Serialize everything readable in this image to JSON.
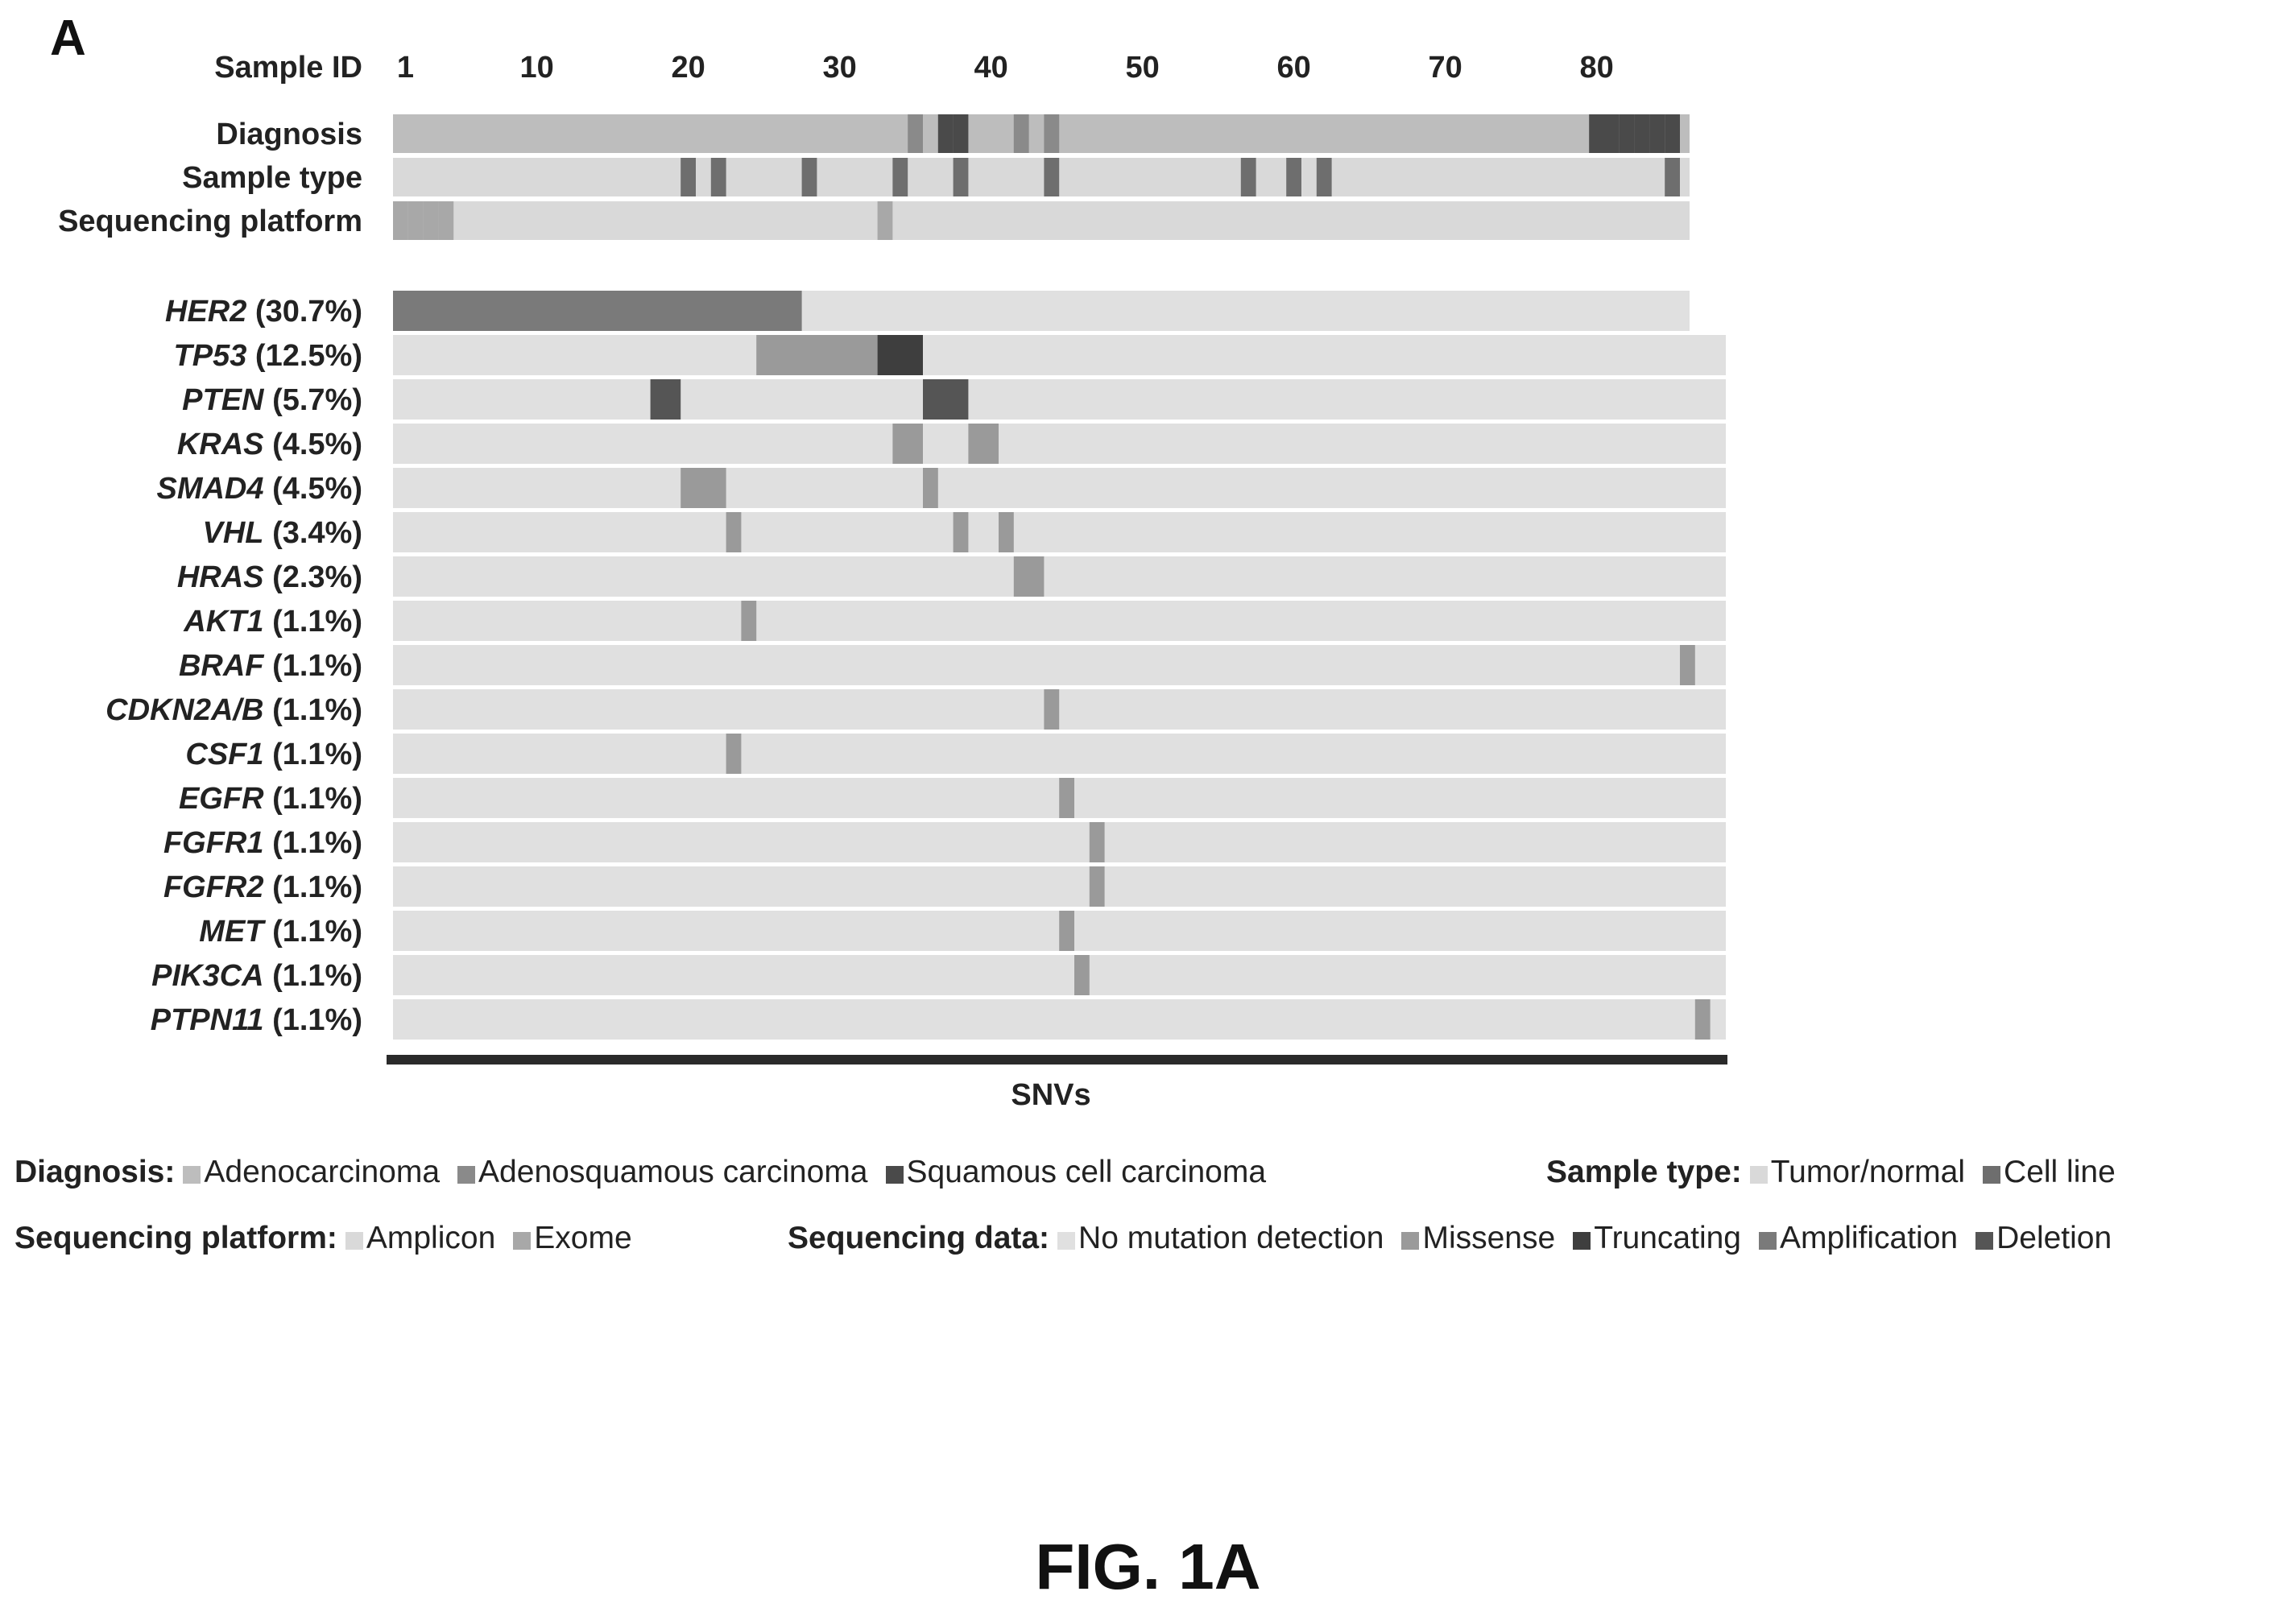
{
  "panel_label": "A",
  "figure_caption": "FIG. 1A",
  "colors": {
    "neutral": "#d9d9d9",
    "light": "#bdbdbd",
    "medium": "#9a9a9a",
    "dark": "#6e6e6e",
    "darkest": "#4a4a4a",
    "text": "#111111"
  },
  "chart_data": {
    "type": "heatmap",
    "x_label": "Sample ID",
    "x_ticks": [
      "1",
      "10",
      "20",
      "30",
      "40",
      "50",
      "60",
      "70",
      "80"
    ],
    "x_tick_values": [
      1,
      10,
      20,
      30,
      40,
      50,
      60,
      70,
      80
    ],
    "n_samples": 85,
    "bottom_label": "SNVs",
    "annotation_rows": [
      {
        "label": "Diagnosis",
        "cells": [
          {
            "sample": 35,
            "category": "Adenosquamous carcinoma"
          },
          {
            "sample": 37,
            "category": "Squamous cell carcinoma"
          },
          {
            "sample": 38,
            "category": "Squamous cell carcinoma"
          },
          {
            "sample": 42,
            "category": "Adenosquamous carcinoma"
          },
          {
            "sample": 44,
            "category": "Adenosquamous carcinoma"
          },
          {
            "sample": 80,
            "category": "Squamous cell carcinoma"
          },
          {
            "sample": 81,
            "category": "Squamous cell carcinoma"
          },
          {
            "sample": 82,
            "category": "Squamous cell carcinoma"
          },
          {
            "sample": 83,
            "category": "Squamous cell carcinoma"
          },
          {
            "sample": 84,
            "category": "Squamous cell carcinoma"
          },
          {
            "sample": 85,
            "category": "Squamous cell carcinoma"
          }
        ],
        "default": "Adenocarcinoma"
      },
      {
        "label": "Sample type",
        "cells": [
          {
            "sample": 20,
            "category": "Cell line"
          },
          {
            "sample": 22,
            "category": "Cell line"
          },
          {
            "sample": 28,
            "category": "Cell line"
          },
          {
            "sample": 34,
            "category": "Cell line"
          },
          {
            "sample": 38,
            "category": "Cell line"
          },
          {
            "sample": 44,
            "category": "Cell line"
          },
          {
            "sample": 57,
            "category": "Cell line"
          },
          {
            "sample": 60,
            "category": "Cell line"
          },
          {
            "sample": 62,
            "category": "Cell line"
          },
          {
            "sample": 85,
            "category": "Cell line"
          }
        ],
        "default": "Tumor/normal"
      },
      {
        "label": "Sequencing platform",
        "cells": [
          {
            "sample": 1,
            "category": "Exome"
          },
          {
            "sample": 2,
            "category": "Exome"
          },
          {
            "sample": 3,
            "category": "Exome"
          },
          {
            "sample": 4,
            "category": "Exome"
          },
          {
            "sample": 33,
            "category": "Exome"
          }
        ],
        "default": "Amplicon"
      }
    ],
    "genes": [
      {
        "gene": "HER2",
        "freq": "(30.7%)",
        "cells": [
          {
            "start": 1,
            "end": 27,
            "category": "Amplification"
          }
        ]
      },
      {
        "gene": "TP53",
        "freq": "(12.5%)",
        "cells": [
          {
            "start": 25,
            "end": 32,
            "category": "Missense"
          },
          {
            "start": 33,
            "end": 35,
            "category": "Truncating"
          }
        ]
      },
      {
        "gene": "PTEN",
        "freq": "(5.7%)",
        "cells": [
          {
            "start": 18,
            "end": 19,
            "category": "Deletion"
          },
          {
            "start": 36,
            "end": 38,
            "category": "Deletion"
          }
        ]
      },
      {
        "gene": "KRAS",
        "freq": "(4.5%)",
        "cells": [
          {
            "start": 34,
            "end": 35,
            "category": "Missense"
          },
          {
            "start": 39,
            "end": 40,
            "category": "Missense"
          }
        ]
      },
      {
        "gene": "SMAD4",
        "freq": "(4.5%)",
        "cells": [
          {
            "start": 20,
            "end": 22,
            "category": "Missense"
          },
          {
            "start": 36,
            "end": 36,
            "category": "Missense"
          }
        ]
      },
      {
        "gene": "VHL",
        "freq": "(3.4%)",
        "cells": [
          {
            "start": 23,
            "end": 23,
            "category": "Missense"
          },
          {
            "start": 38,
            "end": 38,
            "category": "Missense"
          },
          {
            "start": 41,
            "end": 41,
            "category": "Missense"
          }
        ]
      },
      {
        "gene": "HRAS",
        "freq": "(2.3%)",
        "cells": [
          {
            "start": 42,
            "end": 43,
            "category": "Missense"
          }
        ]
      },
      {
        "gene": "AKT1",
        "freq": "(1.1%)",
        "cells": [
          {
            "start": 24,
            "end": 24,
            "category": "Missense"
          }
        ]
      },
      {
        "gene": "BRAF",
        "freq": "(1.1%)",
        "cells": [
          {
            "start": 86,
            "end": 86,
            "category": "Missense"
          }
        ]
      },
      {
        "gene": "CDKN2A/B",
        "freq": "(1.1%)",
        "cells": [
          {
            "start": 44,
            "end": 44,
            "category": "Missense"
          }
        ]
      },
      {
        "gene": "CSF1",
        "freq": "(1.1%)",
        "cells": [
          {
            "start": 23,
            "end": 23,
            "category": "Missense"
          }
        ]
      },
      {
        "gene": "EGFR",
        "freq": "(1.1%)",
        "cells": [
          {
            "start": 45,
            "end": 45,
            "category": "Missense"
          }
        ]
      },
      {
        "gene": "FGFR1",
        "freq": "(1.1%)",
        "cells": [
          {
            "start": 47,
            "end": 47,
            "category": "Missense"
          }
        ]
      },
      {
        "gene": "FGFR2",
        "freq": "(1.1%)",
        "cells": [
          {
            "start": 47,
            "end": 47,
            "category": "Missense"
          }
        ]
      },
      {
        "gene": "MET",
        "freq": "(1.1%)",
        "cells": [
          {
            "start": 45,
            "end": 45,
            "category": "Missense"
          }
        ]
      },
      {
        "gene": "PIK3CA",
        "freq": "(1.1%)",
        "cells": [
          {
            "start": 46,
            "end": 46,
            "category": "Missense"
          }
        ]
      },
      {
        "gene": "PTPN11",
        "freq": "(1.1%)",
        "cells": [
          {
            "start": 87,
            "end": 87,
            "category": "Missense"
          }
        ]
      }
    ],
    "legend": [
      {
        "title": "Diagnosis:",
        "items": [
          {
            "label": "Adenocarcinoma",
            "color": "#bdbdbd"
          },
          {
            "label": "Adenosquamous carcinoma",
            "color": "#8a8a8a"
          },
          {
            "label": "Squamous cell carcinoma",
            "color": "#4a4a4a"
          }
        ]
      },
      {
        "title": "Sample type:",
        "items": [
          {
            "label": "Tumor/normal",
            "color": "#d9d9d9"
          },
          {
            "label": "Cell line",
            "color": "#6e6e6e"
          }
        ]
      },
      {
        "title": "Sequencing platform:",
        "items": [
          {
            "label": "Amplicon",
            "color": "#d9d9d9"
          },
          {
            "label": "Exome",
            "color": "#a8a8a8"
          }
        ]
      },
      {
        "title": "Sequencing data:",
        "items": [
          {
            "label": "No mutation detection",
            "color": "#e0e0e0"
          },
          {
            "label": "Missense",
            "color": "#9a9a9a"
          },
          {
            "label": "Truncating",
            "color": "#3e3e3e"
          },
          {
            "label": "Amplification",
            "color": "#7a7a7a"
          },
          {
            "label": "Deletion",
            "color": "#555555"
          }
        ]
      }
    ],
    "category_colors": {
      "Adenocarcinoma": "#bdbdbd",
      "Adenosquamous carcinoma": "#8a8a8a",
      "Squamous cell carcinoma": "#4a4a4a",
      "Tumor/normal": "#d9d9d9",
      "Cell line": "#6e6e6e",
      "Amplicon": "#d9d9d9",
      "Exome": "#a8a8a8",
      "No mutation detection": "#e0e0e0",
      "Missense": "#9a9a9a",
      "Truncating": "#3e3e3e",
      "Amplification": "#7a7a7a",
      "Deletion": "#555555"
    }
  }
}
